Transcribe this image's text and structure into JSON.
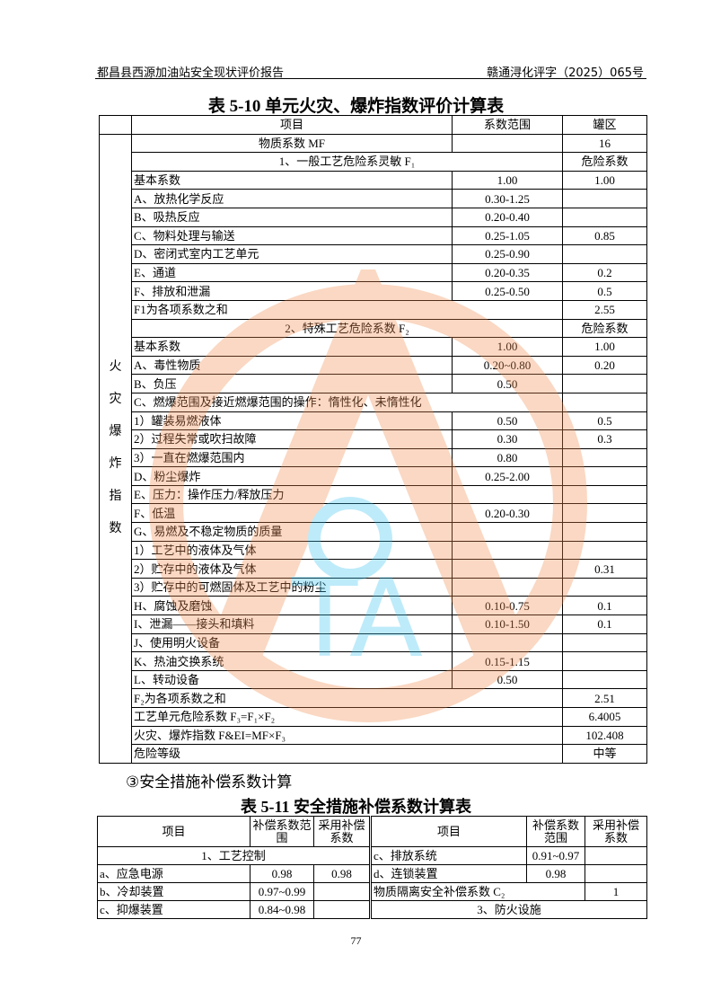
{
  "header": {
    "left": "都昌县西源加油站安全现状评价报告",
    "right": "赣通浔化评字（2025）065号"
  },
  "table1": {
    "title": "表 5-10 单元火灾、爆炸指数评价计算表",
    "columns": [
      "项目",
      "系数范围",
      "罐区"
    ],
    "side_label": "火灾爆炸指数",
    "rows": [
      {
        "item": "物质系数 MF",
        "range": "",
        "value": "16",
        "type": "center"
      },
      {
        "item": "1、一般工艺危险系灵敏 F₁",
        "value": "危险系数",
        "type": "merge-center"
      },
      {
        "item": "基本系数",
        "range": "1.00",
        "value": "1.00"
      },
      {
        "item": "A、放热化学反应",
        "range": "0.30-1.25",
        "value": ""
      },
      {
        "item": "B、吸热反应",
        "range": "0.20-0.40",
        "value": ""
      },
      {
        "item": "C、物料处理与输送",
        "range": "0.25-1.05",
        "value": "0.85"
      },
      {
        "item": "D、密闭式室内工艺单元",
        "range": "0.25-0.90",
        "value": ""
      },
      {
        "item": "E、通道",
        "range": "0.20-0.35",
        "value": "0.2"
      },
      {
        "item": "F、排放和泄漏",
        "range": "0.25-0.50",
        "value": "0.5"
      },
      {
        "item": "F1为各项系数之和",
        "value": "2.55",
        "type": "merge"
      },
      {
        "item": "2、特殊工艺危险系数 F₂",
        "value": "危险系数",
        "type": "merge-center"
      },
      {
        "item": "基本系数",
        "range": "1.00",
        "value": "1.00"
      },
      {
        "item": "A、毒性物质",
        "range": "0.20~0.80",
        "value": "0.20"
      },
      {
        "item": "B、负压",
        "range": "0.50",
        "value": ""
      },
      {
        "item": "C、燃爆范围及接近燃爆范围的操作：惰性化、未惰性化",
        "value": "",
        "type": "merge"
      },
      {
        "item": "1）罐装易燃液体",
        "range": "0.50",
        "value": "0.5"
      },
      {
        "item": "2）过程失常或吹扫故障",
        "range": "0.30",
        "value": "0.3"
      },
      {
        "item": "3）一直在燃爆范围内",
        "range": "0.80",
        "value": ""
      },
      {
        "item": "D、粉尘爆炸",
        "range": "0.25-2.00",
        "value": ""
      },
      {
        "item": "E、压力：操作压力/释放压力",
        "range": "",
        "value": ""
      },
      {
        "item": "F、低温",
        "range": "0.20-0.30",
        "value": ""
      },
      {
        "item": "G、易燃及不稳定物质的质量",
        "range": "",
        "value": ""
      },
      {
        "item": "1）工艺中的液体及气体",
        "range": "",
        "value": ""
      },
      {
        "item": "2）贮存中的液体及气体",
        "range": "",
        "value": "0.31"
      },
      {
        "item": "3）贮存中的可燃固体及工艺中的粉尘",
        "range": "",
        "value": ""
      },
      {
        "item": "H、腐蚀及磨蚀",
        "range": "0.10-0.75",
        "value": "0.1"
      },
      {
        "item": "I、泄漏——接头和填料",
        "range": "0.10-1.50",
        "value": "0.1"
      },
      {
        "item": "J、使用明火设备",
        "range": "",
        "value": ""
      },
      {
        "item": "K、热油交换系统",
        "range": "0.15-1.15",
        "value": ""
      },
      {
        "item": "L、转动设备",
        "range": "0.50",
        "value": ""
      },
      {
        "item": "F₂为各项系数之和",
        "value": "2.51",
        "type": "merge"
      },
      {
        "item": "工艺单元危险系数 F₃=F₁×F₂",
        "value": "6.4005",
        "type": "merge"
      },
      {
        "item": "火灾、爆炸指数 F&EI=MF×F₃",
        "value": "102.408",
        "type": "merge"
      },
      {
        "item": "危险等级",
        "value": "中等",
        "type": "merge"
      }
    ]
  },
  "section": "③安全措施补偿系数计算",
  "table2": {
    "title": "表 5-11 安全措施补偿系数计算表",
    "columns": [
      "项目",
      "补偿系数范围",
      "采用补偿系数",
      "项目",
      "补偿系数范围",
      "采用补偿系数"
    ],
    "rows": [
      {
        "left": {
          "item": "1、工艺控制",
          "type": "merge"
        },
        "right": {
          "item": "c、排放系统",
          "range": "0.91~0.97",
          "value": ""
        }
      },
      {
        "left": {
          "item": "a、应急电源",
          "range": "0.98",
          "value": "0.98"
        },
        "right": {
          "item": "d、连锁装置",
          "range": "0.98",
          "value": ""
        }
      },
      {
        "left": {
          "item": "b、冷却装置",
          "range": "0.97~0.99",
          "value": ""
        },
        "right": {
          "item": "物质隔离安全补偿系数 C₂",
          "value": "1",
          "type": "merge2"
        }
      },
      {
        "left": {
          "item": "c、抑爆装置",
          "range": "0.84~0.98",
          "value": ""
        },
        "right": {
          "item": "3、防火设施",
          "type": "merge"
        }
      }
    ]
  },
  "page_number": "77",
  "colors": {
    "watermark_orange": "#f08a4b",
    "watermark_blue": "#3ec3f0"
  }
}
